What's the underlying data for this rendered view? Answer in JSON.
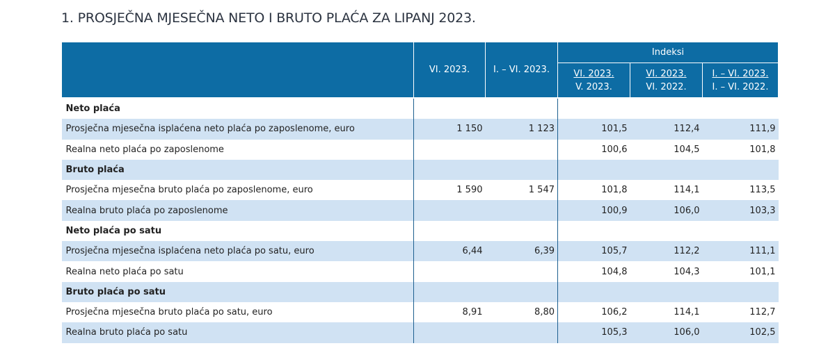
{
  "title": "1. PROSJEČNA MJESEČNA NETO I BRUTO PLAĆA ZA LIPANJ 2023.",
  "header": {
    "col1": "VI. 2023.",
    "col2": "I. – VI. 2023.",
    "indices": "Indeksi",
    "idx": [
      {
        "num": "VI. 2023.",
        "den": "V. 2023."
      },
      {
        "num": "VI. 2023.",
        "den": "VI. 2022."
      },
      {
        "num": "I. – VI. 2023.",
        "den": "I. – VI. 2022."
      }
    ]
  },
  "rows": [
    {
      "label": "Neto plaća",
      "section": true,
      "values": [
        "",
        "",
        "",
        "",
        ""
      ]
    },
    {
      "label": "Prosječna mjesečna isplaćena neto plaća po zaposlenome, euro",
      "values": [
        "1 150",
        "1 123",
        "101,5",
        "112,4",
        "111,9"
      ]
    },
    {
      "label": "Realna neto plaća po zaposlenome",
      "values": [
        "",
        "",
        "100,6",
        "104,5",
        "101,8"
      ]
    },
    {
      "label": "Bruto plaća",
      "section": true,
      "values": [
        "",
        "",
        "",
        "",
        ""
      ]
    },
    {
      "label": "Prosječna mjesečna bruto plaća po zaposlenome, euro",
      "values": [
        "1 590",
        "1 547",
        "101,8",
        "114,1",
        "113,5"
      ]
    },
    {
      "label": "Realna bruto plaća po zaposlenome",
      "values": [
        "",
        "",
        "100,9",
        "106,0",
        "103,3"
      ]
    },
    {
      "label": "Neto plaća po satu",
      "section": true,
      "values": [
        "",
        "",
        "",
        "",
        ""
      ]
    },
    {
      "label": "Prosječna mjesečna isplaćena neto plaća po satu, euro",
      "values": [
        "6,44",
        "6,39",
        "105,7",
        "112,2",
        "111,1"
      ]
    },
    {
      "label": "Realna neto plaća po satu",
      "values": [
        "",
        "",
        "104,8",
        "104,3",
        "101,1"
      ]
    },
    {
      "label": "Bruto plaća po satu",
      "section": true,
      "values": [
        "",
        "",
        "",
        "",
        ""
      ]
    },
    {
      "label": "Prosječna mjesečna bruto plaća po satu, euro",
      "values": [
        "8,91",
        "8,80",
        "106,2",
        "114,1",
        "112,7"
      ]
    },
    {
      "label": "Realna bruto plaća po satu",
      "values": [
        "",
        "",
        "105,3",
        "106,0",
        "102,5"
      ]
    }
  ]
}
